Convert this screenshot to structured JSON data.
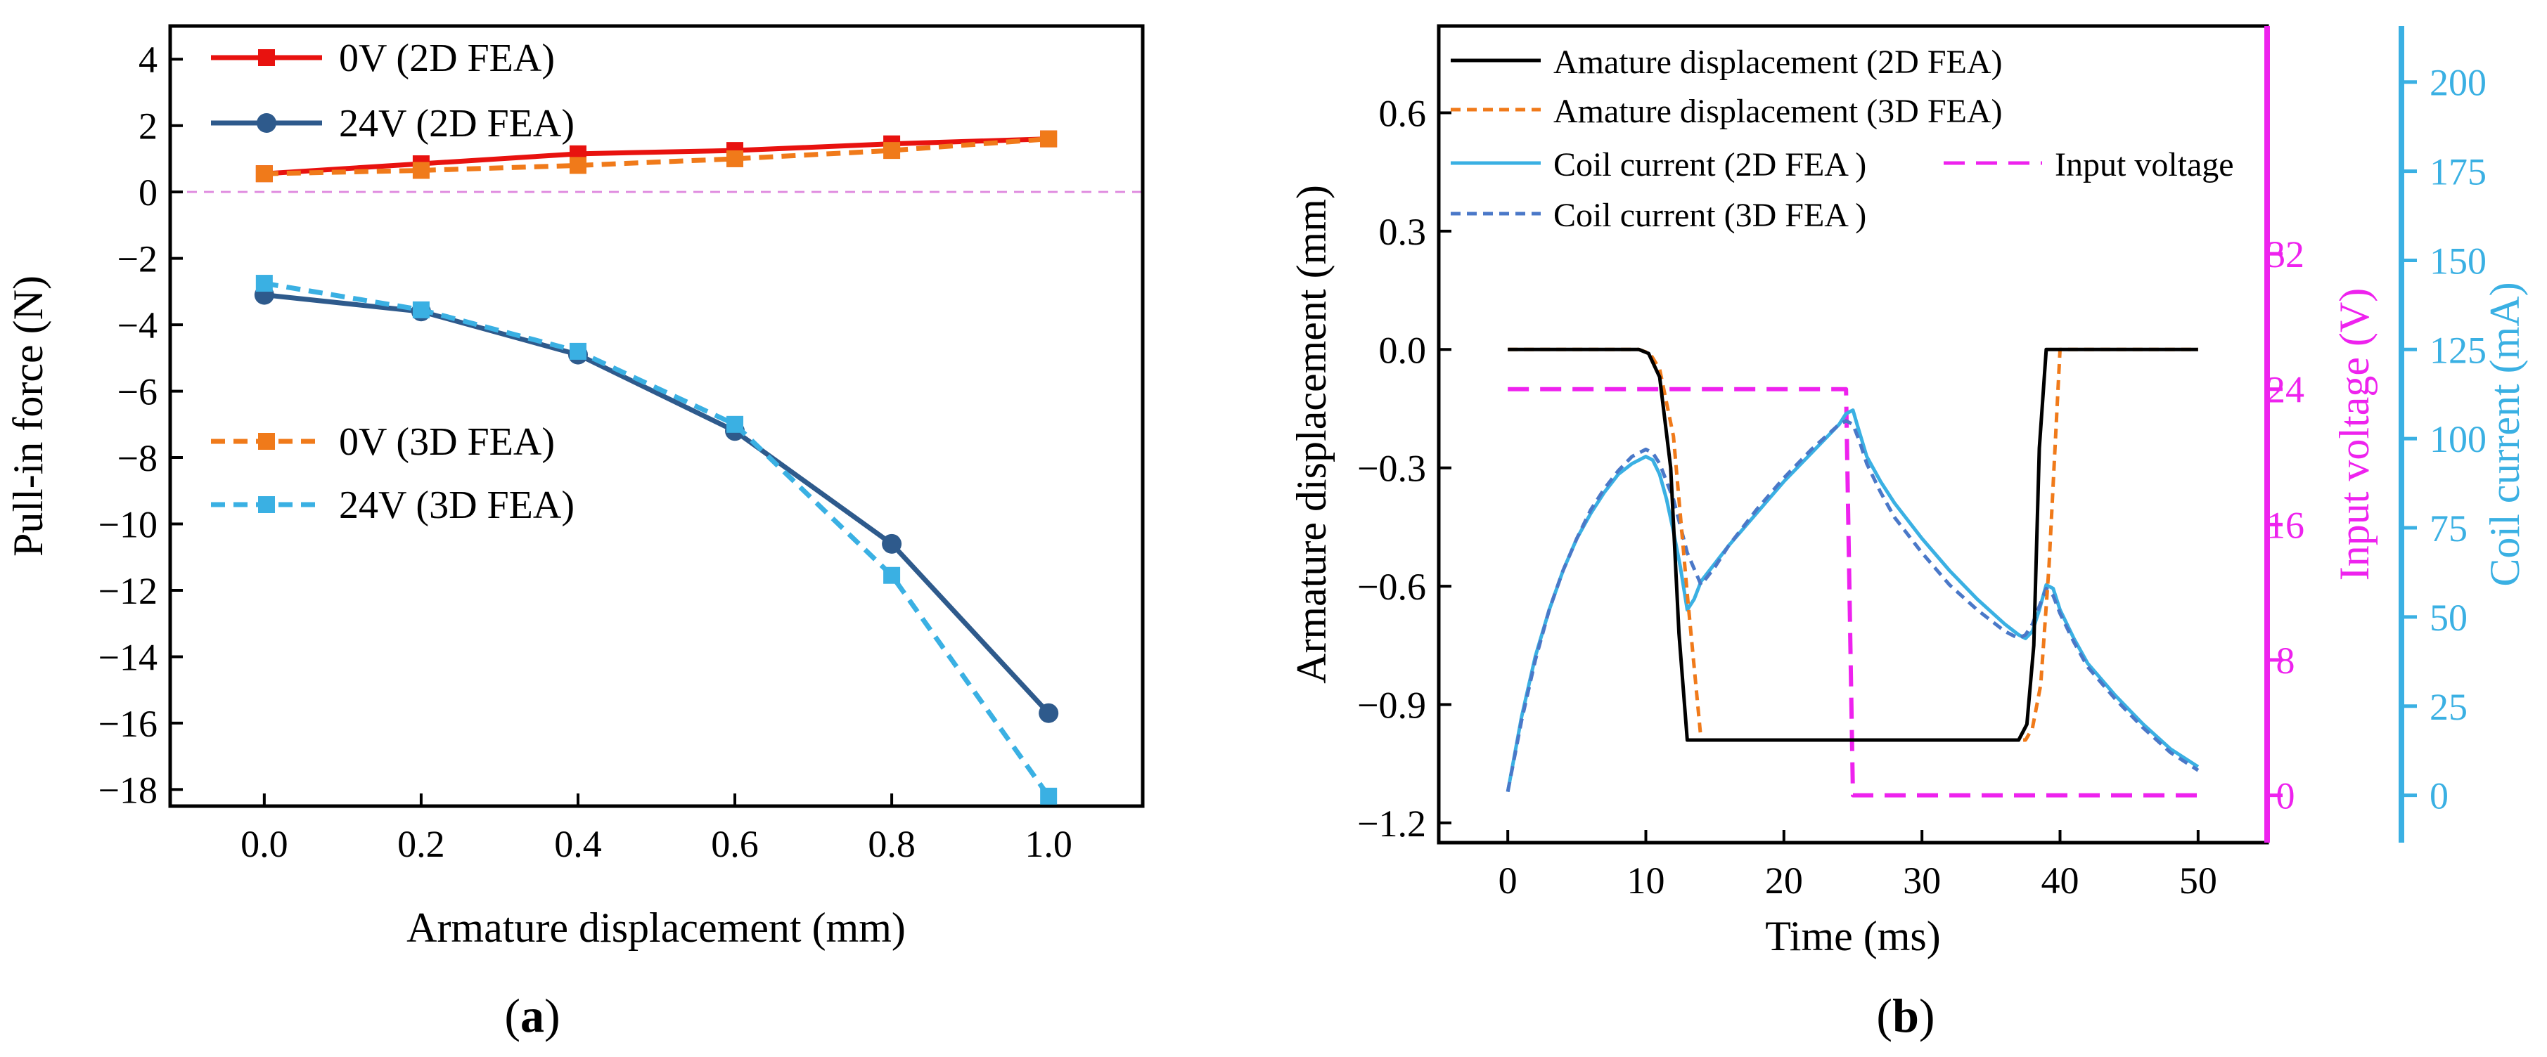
{
  "chart_data": [
    {
      "type": "line",
      "panel_label": "(a)",
      "panel_letter": "a",
      "xlabel": "Armature displacement (mm)",
      "ylabel": "Pull-in force (N)",
      "xlim": [
        -0.12,
        1.12
      ],
      "ylim": [
        -18.5,
        5.0
      ],
      "xticks": [
        "0.0",
        "0.2",
        "0.4",
        "0.6",
        "0.8",
        "1.0"
      ],
      "yticks": [
        "4",
        "2",
        "0",
        "−2",
        "−4",
        "−6",
        "−8",
        "−10",
        "−12",
        "−14",
        "−16",
        "−18"
      ],
      "reference_line": {
        "y": 0,
        "color": "#e08ee0",
        "style": "dashed"
      },
      "x": [
        0.0,
        0.2,
        0.4,
        0.6,
        0.8,
        1.0
      ],
      "series": [
        {
          "name": "0V (2D FEA)",
          "values": [
            0.55,
            0.85,
            1.15,
            1.25,
            1.45,
            1.6
          ],
          "color": "#e8120f",
          "style": "solid",
          "marker": "square"
        },
        {
          "name": "24V (2D FEA)",
          "values": [
            -3.1,
            -3.6,
            -4.9,
            -7.2,
            -10.6,
            -15.7
          ],
          "color": "#2e5a8c",
          "style": "solid",
          "marker": "circle"
        },
        {
          "name": "0V (3D FEA)",
          "values": [
            0.55,
            0.65,
            0.8,
            1.0,
            1.25,
            1.6
          ],
          "color": "#f07a1a",
          "style": "dashed",
          "marker": "square"
        },
        {
          "name": "24V (3D FEA)",
          "values": [
            -2.75,
            -3.55,
            -4.8,
            -7.0,
            -11.55,
            -18.2
          ],
          "color": "#3ab0e3",
          "style": "dashed",
          "marker": "square"
        }
      ]
    },
    {
      "type": "line",
      "panel_label": "(b)",
      "panel_letter": "b",
      "xlabel": "Time (ms)",
      "ylabel": "Armature displacement (mm)",
      "ylabel_right_1": "Input voltage (V)",
      "ylabel_right_2": "Coil current (mA)",
      "xlim": [
        -5,
        55
      ],
      "ylim": [
        -1.25,
        0.82
      ],
      "xticks": [
        "0",
        "10",
        "20",
        "30",
        "40",
        "50"
      ],
      "yticks": [
        "0.6",
        "0.3",
        "0.0",
        "−0.3",
        "−0.6",
        "−0.9",
        "−1.2"
      ],
      "y_right_1_ticks": [
        "32",
        "24",
        "16",
        "8",
        "0"
      ],
      "y_right_2_ticks": [
        "200",
        "175",
        "150",
        "125",
        "100",
        "75",
        "50",
        "25",
        "0"
      ],
      "series": [
        {
          "name": "Amature displacement (2D FEA)",
          "axis": "left",
          "color": "#000000",
          "style": "solid",
          "x": [
            0,
            9.5,
            10.2,
            11,
            11.8,
            12.4,
            13,
            37,
            37.6,
            38.1,
            38.5,
            39,
            50
          ],
          "values": [
            0,
            0,
            -0.01,
            -0.07,
            -0.3,
            -0.72,
            -0.99,
            -0.99,
            -0.95,
            -0.75,
            -0.25,
            0,
            0
          ]
        },
        {
          "name": "Amature displacement (3D FEA)",
          "axis": "left",
          "color": "#f07a1a",
          "style": "dashed",
          "x": [
            0,
            9.5,
            10.3,
            11,
            12,
            13,
            14,
            37.5,
            38,
            38.6,
            39.2,
            40,
            50
          ],
          "values": [
            0,
            0,
            -0.01,
            -0.05,
            -0.22,
            -0.62,
            -0.99,
            -0.99,
            -0.96,
            -0.85,
            -0.55,
            0,
            0
          ]
        },
        {
          "name": "Coil current (2D FEA )",
          "axis": "right2",
          "color": "#3ab0e3",
          "style": "solid",
          "x": [
            0,
            1,
            2,
            3,
            4,
            5,
            6,
            7,
            8,
            9,
            10,
            10.5,
            11,
            11.5,
            12,
            12.5,
            13,
            13.5,
            14,
            16,
            18,
            20,
            22,
            24,
            24.5,
            25,
            25.3,
            26,
            27,
            28,
            30,
            32,
            34,
            36,
            37,
            37.5,
            38,
            38.5,
            39,
            39.5,
            40,
            41,
            42,
            44,
            46,
            48,
            50
          ],
          "values": [
            1,
            22,
            39,
            52,
            63,
            72,
            79,
            85,
            90,
            93,
            95,
            94,
            90,
            83,
            74,
            64,
            52,
            55,
            60,
            70,
            79,
            88,
            96,
            104,
            107,
            108,
            104,
            95,
            88,
            82,
            72,
            63,
            55,
            48,
            45,
            44,
            46,
            52,
            59,
            58,
            52,
            44,
            37,
            28,
            20,
            13,
            8
          ]
        },
        {
          "name": "Coil current (3D FEA )",
          "axis": "right2",
          "color": "#4a78c8",
          "style": "dashed",
          "x": [
            0,
            1,
            2,
            3,
            4,
            5,
            6,
            7,
            8,
            9,
            10,
            10.5,
            11,
            12,
            13,
            14,
            15,
            16,
            18,
            20,
            22,
            24,
            24.5,
            25,
            25.5,
            26,
            27,
            28,
            30,
            32,
            34,
            36,
            37,
            37.5,
            38,
            38.5,
            39,
            39.5,
            40,
            41,
            42,
            44,
            46,
            48,
            50
          ],
          "values": [
            1,
            21,
            38,
            52,
            63,
            72,
            80,
            86,
            91,
            95,
            97,
            96,
            93,
            83,
            68,
            59,
            64,
            70,
            80,
            89,
            97,
            104,
            105,
            104,
            99,
            93,
            85,
            78,
            68,
            59,
            52,
            46,
            44,
            45,
            48,
            53,
            58,
            56,
            51,
            43,
            36,
            27,
            19,
            12,
            7
          ]
        },
        {
          "name": "Input voltage",
          "axis": "right1",
          "color": "#ee22ee",
          "style": "dashed",
          "x": [
            0,
            24.5,
            25,
            50
          ],
          "values": [
            24,
            24,
            0,
            0
          ]
        }
      ]
    }
  ]
}
